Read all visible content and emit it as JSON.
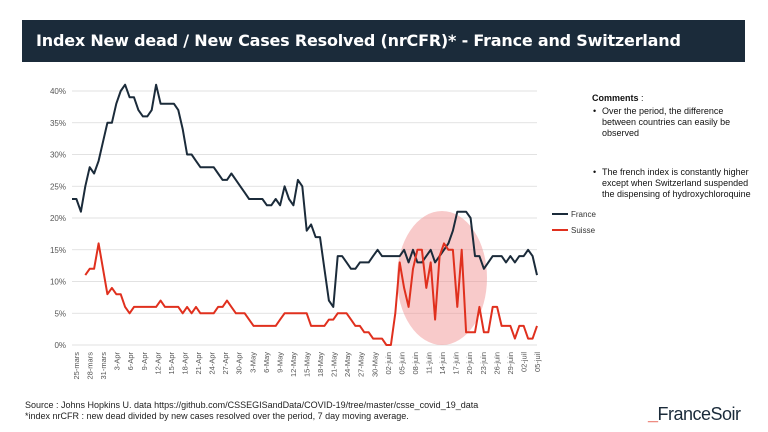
{
  "header": {
    "title": "Index New dead / New Cases Resolved (nrCFR)* - France and Switzerland"
  },
  "comments": {
    "title": "Comments",
    "title_suffix": " :",
    "items": [
      "Over the period, the difference between countries can easily be observed",
      "The french index is constantly higher except when Switzerland suspended the dispensing of hydroxychloroquine"
    ]
  },
  "footer": {
    "source": "Source : Johns Hopkins U. data https://github.com/CSSEGISandData/COVID-19/tree/master/csse_covid_19_data",
    "note": "*index nrCFR : new dead divided by new cases resolved over the period, 7 day moving average."
  },
  "logo": {
    "dash": "_",
    "text": "FranceSoir"
  },
  "chart_data": {
    "type": "line",
    "title": "Index New dead / New Cases Resolved (nrCFR)* - France and Switzerland",
    "xlabel": "",
    "ylabel": "",
    "ylim": [
      0,
      0.42
    ],
    "yticks": [
      "0%",
      "5%",
      "10%",
      "15%",
      "20%",
      "25%",
      "30%",
      "35%",
      "40%"
    ],
    "x_ticks": [
      "25-mars",
      "28-mars",
      "31-mars",
      "3-Apr",
      "6-Apr",
      "9-Apr",
      "12-Apr",
      "15-Apr",
      "18-Apr",
      "21-Apr",
      "24-Apr",
      "27-Apr",
      "30-Apr",
      "3-May",
      "6-May",
      "9-May",
      "12-May",
      "15-May",
      "18-May",
      "21-May",
      "24-May",
      "27-May",
      "30-May",
      "02-juin",
      "05-juin",
      "08-juin",
      "11-juin",
      "14-juin",
      "17-juin",
      "20-juin",
      "23-juin",
      "26-juin",
      "29-juin",
      "02-juil",
      "05-juil"
    ],
    "grid": true,
    "legend_position": "right",
    "annotation": "red ellipse highlighting 8-juin to 22-juin",
    "series": [
      {
        "name": "France",
        "color": "#1b2b3a",
        "values": [
          0.23,
          0.23,
          0.21,
          0.25,
          0.28,
          0.27,
          0.29,
          0.32,
          0.35,
          0.35,
          0.38,
          0.4,
          0.41,
          0.39,
          0.39,
          0.37,
          0.36,
          0.36,
          0.37,
          0.41,
          0.38,
          0.38,
          0.38,
          0.38,
          0.37,
          0.34,
          0.3,
          0.3,
          0.29,
          0.28,
          0.28,
          0.28,
          0.28,
          0.27,
          0.26,
          0.26,
          0.27,
          0.26,
          0.25,
          0.24,
          0.23,
          0.23,
          0.23,
          0.23,
          0.22,
          0.22,
          0.23,
          0.22,
          0.25,
          0.23,
          0.22,
          0.26,
          0.25,
          0.18,
          0.19,
          0.17,
          0.17,
          0.12,
          0.07,
          0.06,
          0.14,
          0.14,
          0.13,
          0.12,
          0.12,
          0.13,
          0.13,
          0.13,
          0.14,
          0.15,
          0.14,
          0.14,
          0.14,
          0.14,
          0.14,
          0.15,
          0.13,
          0.15,
          0.13,
          0.13,
          0.14,
          0.15,
          0.13,
          0.14,
          0.15,
          0.16,
          0.18,
          0.21,
          0.21,
          0.21,
          0.2,
          0.14,
          0.14,
          0.12,
          0.13,
          0.14,
          0.14,
          0.14,
          0.13,
          0.14,
          0.13,
          0.14,
          0.14,
          0.15,
          0.14,
          0.11
        ]
      },
      {
        "name": "Suisse",
        "color": "#e0301e",
        "values": [
          null,
          null,
          null,
          0.11,
          0.12,
          0.12,
          0.16,
          0.12,
          0.08,
          0.09,
          0.08,
          0.08,
          0.06,
          0.05,
          0.06,
          0.06,
          0.06,
          0.06,
          0.06,
          0.06,
          0.07,
          0.06,
          0.06,
          0.06,
          0.06,
          0.05,
          0.06,
          0.05,
          0.06,
          0.05,
          0.05,
          0.05,
          0.05,
          0.06,
          0.06,
          0.07,
          0.06,
          0.05,
          0.05,
          0.05,
          0.04,
          0.03,
          0.03,
          0.03,
          0.03,
          0.03,
          0.03,
          0.04,
          0.05,
          0.05,
          0.05,
          0.05,
          0.05,
          0.05,
          0.03,
          0.03,
          0.03,
          0.03,
          0.04,
          0.04,
          0.05,
          0.05,
          0.05,
          0.04,
          0.03,
          0.03,
          0.02,
          0.02,
          0.01,
          0.01,
          0.01,
          0.0,
          0.0,
          0.05,
          0.13,
          0.09,
          0.06,
          0.12,
          0.15,
          0.15,
          0.09,
          0.13,
          0.04,
          0.14,
          0.16,
          0.15,
          0.15,
          0.06,
          0.15,
          0.02,
          0.02,
          0.02,
          0.06,
          0.02,
          0.02,
          0.06,
          0.06,
          0.03,
          0.03,
          0.03,
          0.01,
          0.03,
          0.03,
          0.01,
          0.01,
          0.03
        ]
      }
    ]
  }
}
